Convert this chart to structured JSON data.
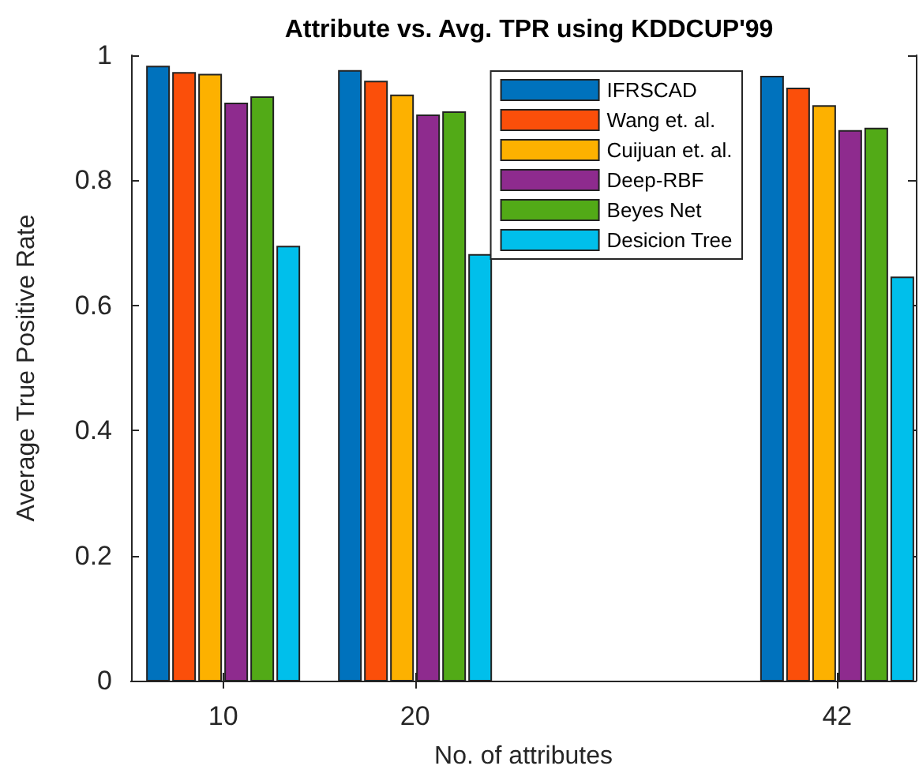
{
  "chart_data": {
    "type": "bar",
    "title": "Attribute vs. Avg. TPR using KDDCUP'99",
    "xlabel": "No. of attributes",
    "ylabel": "Average True Positive Rate",
    "x": [
      10,
      20,
      42
    ],
    "xlim": [
      5.2,
      46.1
    ],
    "xticks": [
      10,
      20,
      42
    ],
    "ylim": [
      0,
      1
    ],
    "yticks": [
      0,
      0.2,
      0.4,
      0.6,
      0.8,
      1
    ],
    "series": [
      {
        "name": "IFRSCAD",
        "color": "#0072bd",
        "values": [
          0.982,
          0.975,
          0.966
        ]
      },
      {
        "name": "Wang et. al.",
        "color": "#fb4f0a",
        "values": [
          0.972,
          0.958,
          0.947
        ]
      },
      {
        "name": "Cuijuan et. al.",
        "color": "#fdb100",
        "values": [
          0.969,
          0.936,
          0.919
        ]
      },
      {
        "name": "Deep-RBF",
        "color": "#8e2b8e",
        "values": [
          0.923,
          0.904,
          0.879
        ]
      },
      {
        "name": "Beyes Net",
        "color": "#52aa17",
        "values": [
          0.933,
          0.909,
          0.883
        ]
      },
      {
        "name": "Desicion Tree",
        "color": "#00bfeb",
        "values": [
          0.694,
          0.681,
          0.645
        ]
      }
    ],
    "grid": false,
    "legend": "top right"
  }
}
